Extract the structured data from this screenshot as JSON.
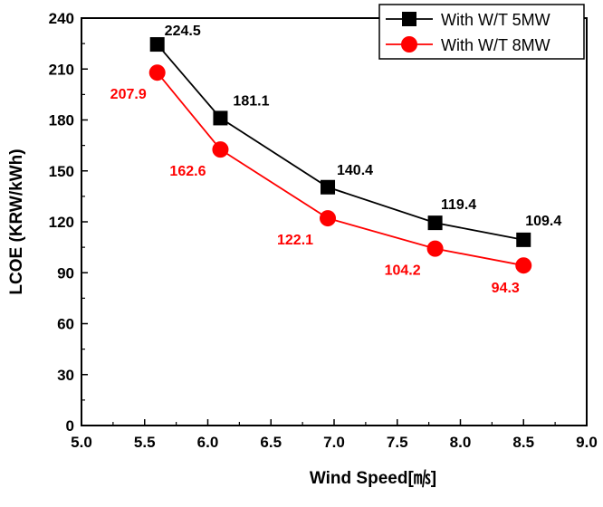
{
  "chart_data": {
    "type": "line",
    "xlabel": "Wind Speed[㎧]",
    "ylabel": "LCOE (KRW/kWh)",
    "xlim": [
      5.0,
      9.0
    ],
    "ylim": [
      0,
      240
    ],
    "x_ticks": [
      "5.0",
      "5.5",
      "6.0",
      "6.5",
      "7.0",
      "7.5",
      "8.0",
      "8.5",
      "9.0"
    ],
    "y_ticks": [
      "0",
      "30",
      "60",
      "90",
      "120",
      "150",
      "180",
      "210",
      "240"
    ],
    "grid": false,
    "legend_position": "top-right",
    "series": [
      {
        "name": "With W/T 5MW",
        "color": "#000000",
        "marker": "square",
        "x": [
          5.6,
          6.1,
          6.95,
          7.8,
          8.5
        ],
        "y": [
          224.5,
          181.1,
          140.4,
          119.4,
          109.4
        ],
        "labels": [
          "224.5",
          "181.1",
          "140.4",
          "119.4",
          "109.4"
        ]
      },
      {
        "name": "With W/T 8MW",
        "color": "#ff0000",
        "marker": "circle",
        "x": [
          5.6,
          6.1,
          6.95,
          7.8,
          8.5
        ],
        "y": [
          207.9,
          162.6,
          122.1,
          104.2,
          94.3
        ],
        "labels": [
          "207.9",
          "162.6",
          "122.1",
          "104.2",
          "94.3"
        ]
      }
    ]
  }
}
